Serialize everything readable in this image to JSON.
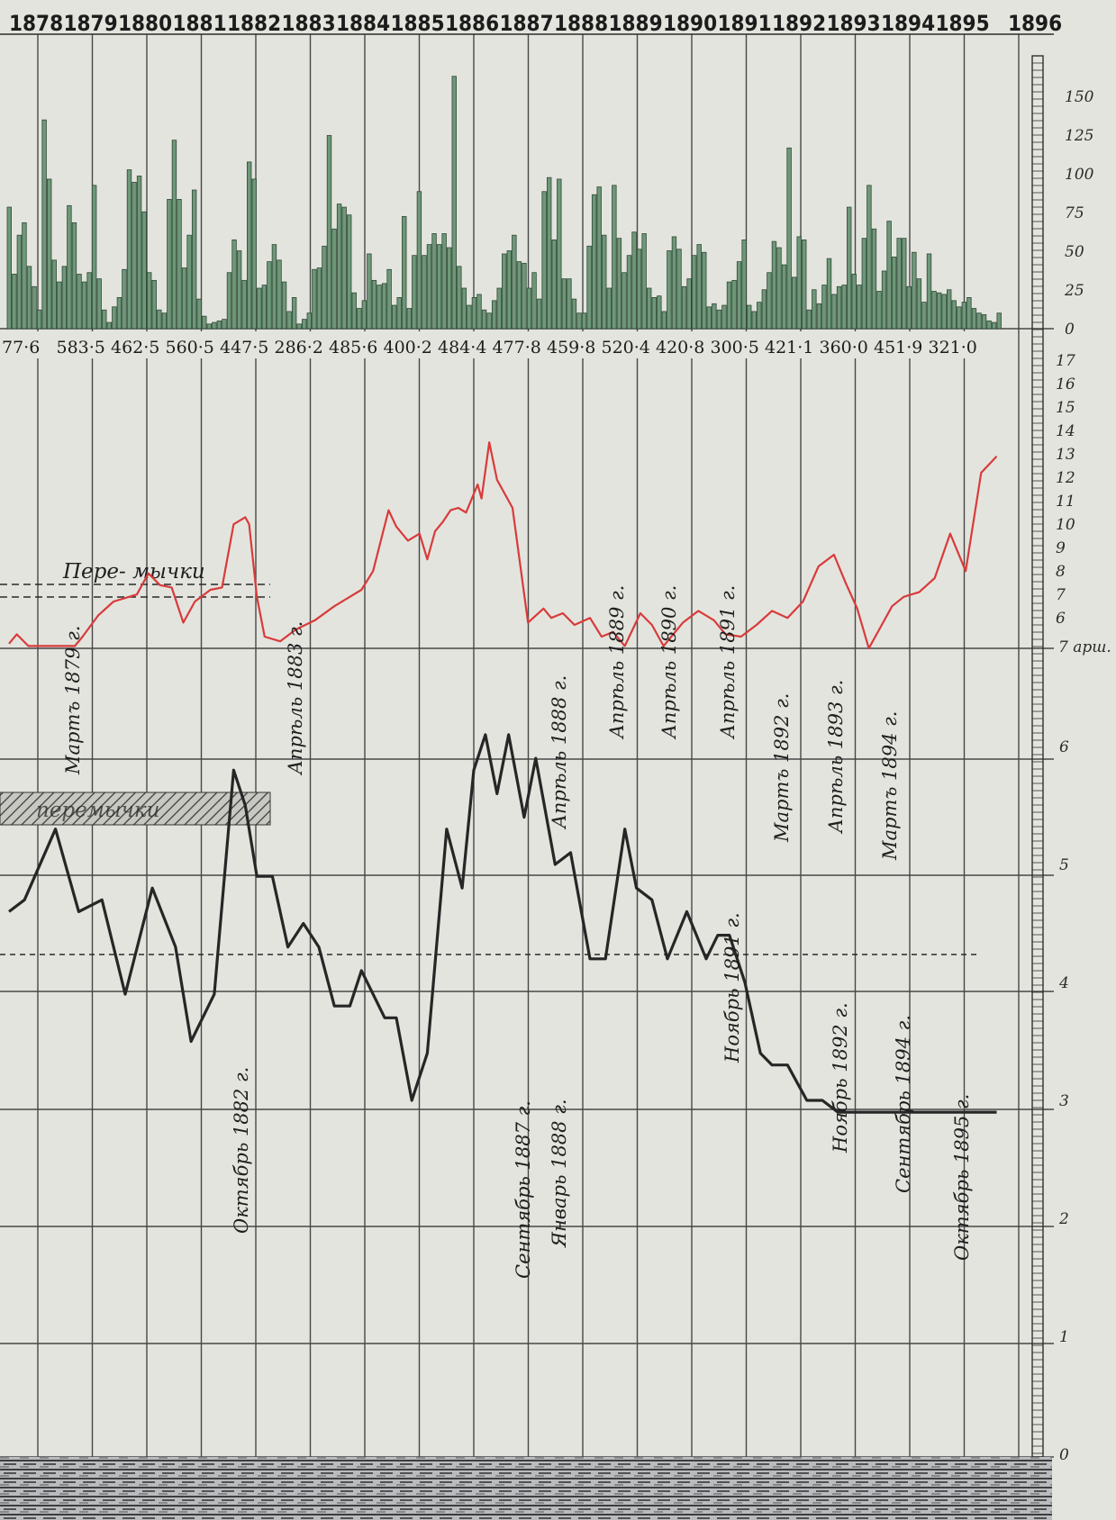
{
  "chart_data": [
    {
      "type": "bar",
      "panel": "top",
      "x": [
        "1878",
        "1879",
        "1880",
        "1881",
        "1882",
        "1883",
        "1884",
        "1885",
        "1886",
        "1887",
        "1888",
        "1889",
        "1890",
        "1891",
        "1892",
        "1893",
        "1894",
        "1895",
        "1896"
      ],
      "yticks": [
        "150",
        "125",
        "100",
        "75",
        "50",
        "25",
        "0"
      ],
      "ylim": [
        0,
        170
      ],
      "annual_totals": [
        "77·6",
        "583·5",
        "462·5",
        "560·5",
        "447·5",
        "286·2",
        "485·6",
        "400·2",
        "484·4",
        "477·8",
        "459·8",
        "520·4",
        "420·8",
        "300·5",
        "421·1",
        "360·0",
        "451·9",
        "321·0"
      ],
      "monthly_values": [
        [
          78,
          35,
          60,
          68,
          40,
          27,
          12,
          134,
          96,
          44,
          30,
          40,
          79,
          68,
          35,
          30,
          36,
          92,
          32,
          12
        ],
        [
          4,
          14,
          20,
          38,
          102,
          94,
          98,
          75,
          36,
          31,
          12,
          10,
          83,
          121,
          83,
          39,
          60,
          89,
          19,
          8
        ],
        [
          3,
          4,
          5,
          6,
          36,
          57,
          50,
          31,
          107,
          96,
          26,
          28,
          43,
          54,
          44,
          30,
          11,
          20,
          3,
          6
        ],
        [
          10,
          38,
          39,
          53,
          124,
          64,
          80,
          78,
          73,
          23,
          13,
          18,
          48,
          31,
          28,
          29,
          38,
          15,
          20,
          72
        ],
        [
          13,
          47,
          88,
          47,
          54,
          61,
          54,
          61,
          52,
          162,
          40,
          26,
          15,
          20,
          22,
          12,
          10,
          18,
          26,
          48
        ],
        [
          50,
          60,
          43,
          42,
          26,
          36,
          19,
          88,
          97,
          57,
          96,
          32,
          32,
          19,
          10,
          10,
          53,
          86,
          91,
          60
        ],
        [
          26,
          92,
          58,
          36,
          47,
          62,
          51,
          61,
          26,
          20,
          21,
          11,
          50,
          59,
          51,
          27,
          32,
          47,
          54,
          49
        ],
        [
          14,
          16,
          12,
          15,
          30,
          31,
          43,
          57,
          15,
          11,
          17,
          25,
          36,
          56,
          52,
          41,
          116,
          33,
          59,
          57
        ],
        [
          12,
          25,
          16,
          28,
          45,
          22,
          27,
          28,
          78,
          35,
          28,
          58,
          92,
          64,
          24,
          37,
          69,
          46,
          58,
          58
        ],
        [
          27,
          49,
          32,
          17,
          48,
          24,
          23,
          22,
          25,
          18,
          14,
          17,
          20,
          13,
          10,
          9,
          5,
          4,
          10,
          8
        ]
      ]
    },
    {
      "type": "line",
      "panel": "middle",
      "color": "#d83b3b",
      "unit": "7 арш.",
      "yticks": [
        "17",
        "16",
        "15",
        "14",
        "13",
        "12",
        "11",
        "10",
        "9",
        "8",
        "7",
        "6"
      ],
      "ylim": [
        5,
        17
      ],
      "label_bridges": "Пере- мычки",
      "x": [
        0,
        2,
        5,
        10,
        14,
        17,
        19,
        23,
        27,
        31,
        33,
        36,
        39,
        42,
        45,
        48,
        52,
        55,
        58,
        61,
        62,
        64,
        66,
        70,
        74,
        79,
        84,
        88,
        91,
        94,
        98,
        100,
        103,
        106,
        108,
        110,
        112,
        114,
        116,
        118,
        120,
        121,
        122,
        124,
        126,
        130,
        134,
        138,
        140,
        143,
        146,
        150,
        153,
        156,
        159,
        163,
        166,
        169,
        171,
        174,
        178,
        182,
        185,
        189,
        193,
        197,
        201,
        205,
        209,
        213,
        216,
        219,
        222,
        225,
        228,
        231,
        235,
        239,
        243,
        247,
        251,
        255
      ],
      "y": [
        5.2,
        5.6,
        5.1,
        5.1,
        5.1,
        5.1,
        5.5,
        6.4,
        7.0,
        7.2,
        7.3,
        8.2,
        7.7,
        7.6,
        6.1,
        7.0,
        7.5,
        7.6,
        10.3,
        10.6,
        10.3,
        7.2,
        5.5,
        5.3,
        5.8,
        6.2,
        6.8,
        7.2,
        7.5,
        8.3,
        10.9,
        10.2,
        9.6,
        9.9,
        8.8,
        10.0,
        10.4,
        10.9,
        11.0,
        10.8,
        11.6,
        12.0,
        11.4,
        13.8,
        12.2,
        11.0,
        6.1,
        6.7,
        6.3,
        6.5,
        6.0,
        6.3,
        5.5,
        5.7,
        5.1,
        6.5,
        6.0,
        5.1,
        5.5,
        6.1,
        6.6,
        6.2,
        5.6,
        5.5,
        6.0,
        6.6,
        6.3,
        7.0,
        8.5,
        9.0,
        7.8,
        6.7,
        5.0,
        5.9,
        6.8,
        7.2,
        7.4,
        8.0,
        9.9,
        8.3,
        12.5,
        13.2
      ]
    },
    {
      "type": "line",
      "panel": "bottom",
      "color": "#262626",
      "yticks": [
        "6",
        "5",
        "4",
        "3",
        "2",
        "1",
        "0"
      ],
      "ylim": [
        0,
        6.5
      ],
      "x": [
        0,
        4,
        12,
        18,
        24,
        30,
        37,
        43,
        47,
        53,
        58,
        61,
        64,
        68,
        72,
        76,
        80,
        84,
        88,
        91,
        94,
        97,
        100,
        104,
        108,
        113,
        117,
        120,
        123,
        126,
        129,
        133,
        136,
        141,
        145,
        150,
        154,
        159,
        162,
        166,
        170,
        175,
        180,
        183,
        186,
        190,
        194,
        197,
        201,
        206,
        210,
        214,
        219,
        223,
        227,
        231,
        235,
        239,
        243,
        247,
        251,
        255
      ],
      "y": [
        4.6,
        4.7,
        5.3,
        4.6,
        4.7,
        3.9,
        4.8,
        4.3,
        3.5,
        3.9,
        5.8,
        5.5,
        4.9,
        4.9,
        4.3,
        4.5,
        4.3,
        3.8,
        3.8,
        4.1,
        3.9,
        3.7,
        3.7,
        3.0,
        3.4,
        5.3,
        4.8,
        5.8,
        6.1,
        5.6,
        6.1,
        5.4,
        5.9,
        5.0,
        5.1,
        4.2,
        4.2,
        5.3,
        4.8,
        4.7,
        4.2,
        4.6,
        4.2,
        4.4,
        4.4,
        4.0,
        3.4,
        3.3,
        3.3,
        3.0,
        3.0,
        2.9,
        2.9,
        2.9,
        2.9,
        2.9,
        2.9,
        2.9,
        2.9,
        2.9,
        2.9,
        2.9
      ],
      "dashed_mean": 4.32,
      "annotations": [
        "Мартъ 1879 г.",
        "Октябрь 1882 г.",
        "Апрѣль 1883 г.",
        "Сентябрь 1887 г.",
        "Январь 1888 г.",
        "Апрѣль 1888 г.",
        "Апрѣль 1889 г.",
        "Апрѣль 1890 г.",
        "Апрѣль 1891 г.",
        "Ноябрь 1891 г.",
        "Мартъ 1892 г.",
        "Ноябрь 1892 г.",
        "Апрѣль 1893 г.",
        "Мартъ 1894 г.",
        "Сентябрь 1894 г.",
        "Октябрь 1895 г."
      ],
      "hatched_label": "перемычки"
    }
  ],
  "header": {
    "years": [
      "1878",
      "1879",
      "1880",
      "1881",
      "1882",
      "1883",
      "1884",
      "1885",
      "1886",
      "1887",
      "1888",
      "1889",
      "1890",
      "1891",
      "1892",
      "1893",
      "1894",
      "1895",
      "1896"
    ]
  }
}
